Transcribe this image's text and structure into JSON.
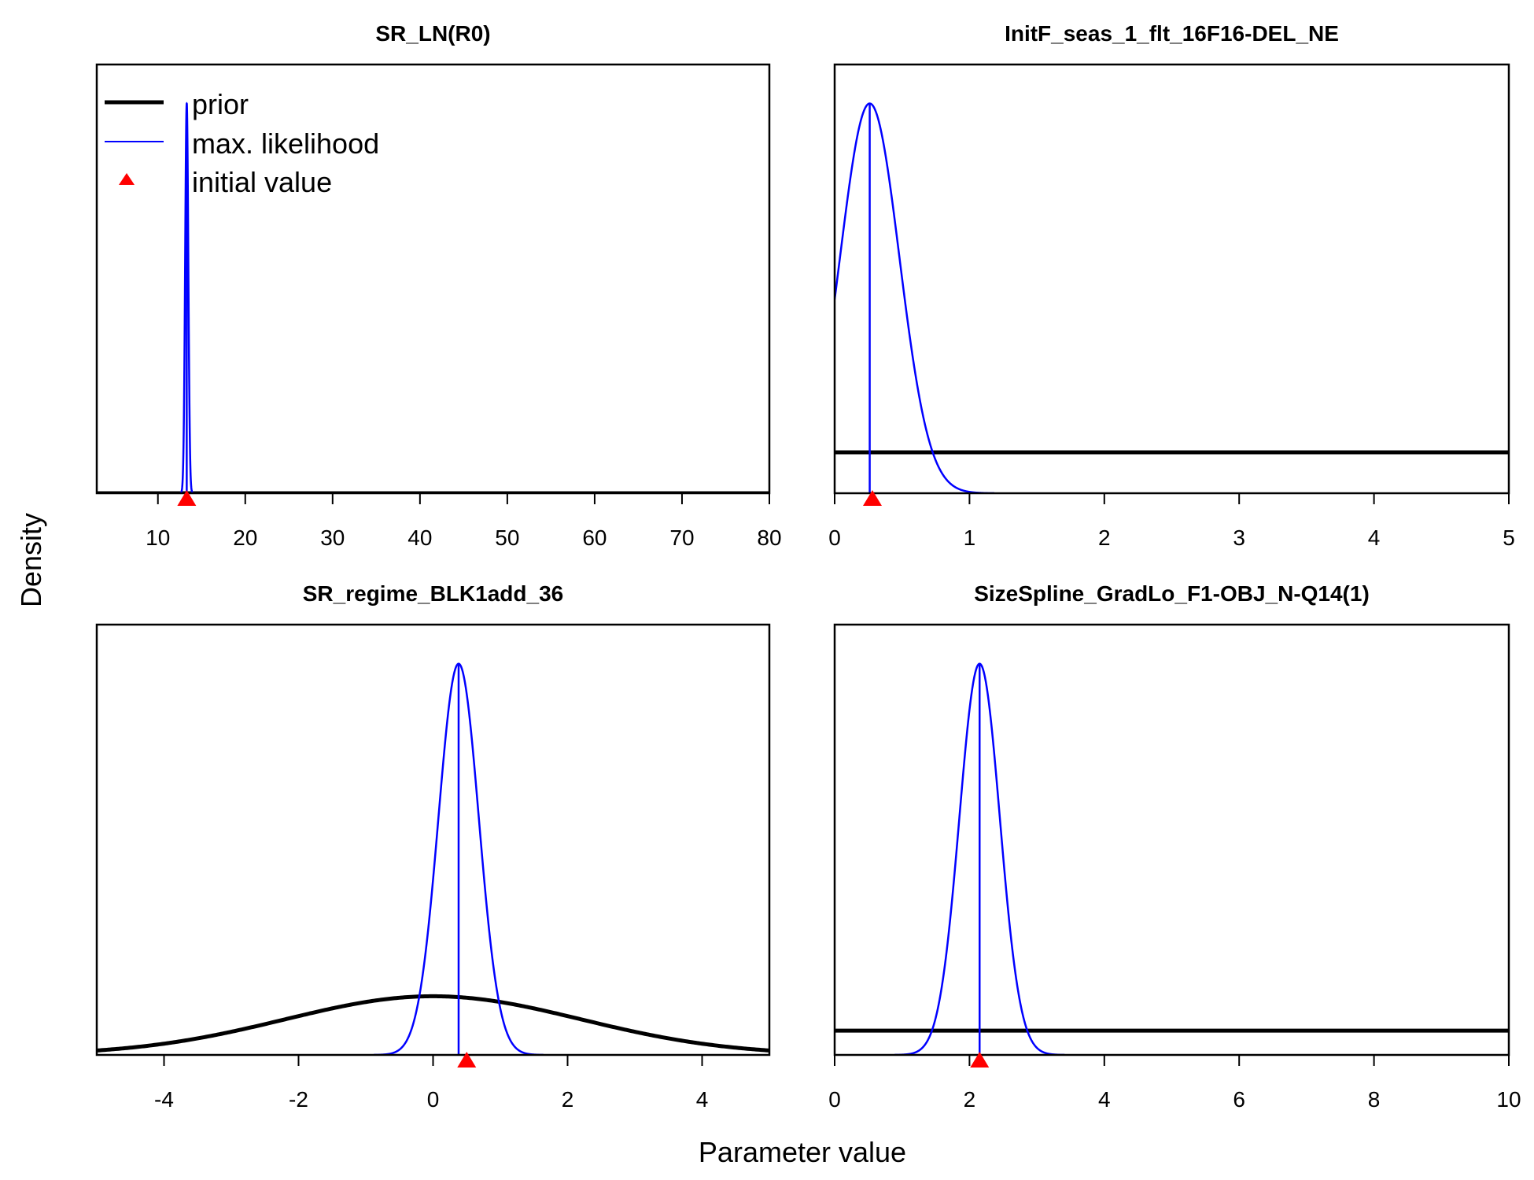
{
  "figure": {
    "xlabel": "Parameter value",
    "ylabel": "Density",
    "legend": {
      "placement": "top-left of first panel",
      "items": [
        {
          "label": "prior",
          "style": "thick black line",
          "color": "#000000"
        },
        {
          "label": "max. likelihood",
          "style": "thin blue line",
          "color": "#0000ff"
        },
        {
          "label": "initial value",
          "style": "red triangle",
          "color": "#ff0000"
        }
      ]
    },
    "colors": {
      "prior": "#000000",
      "mle": "#0000ff",
      "init": "#ff0000"
    }
  },
  "chart_data": [
    {
      "type": "line",
      "title": "SR_LN(R0)",
      "xlim": [
        3,
        80
      ],
      "xticks": [
        10,
        20,
        30,
        40,
        50,
        60,
        70,
        80
      ],
      "ylim": [
        0,
        1.1
      ],
      "prior": {
        "kind": "flat",
        "level": 0.0
      },
      "mle": {
        "mean": 13.3,
        "sd": 0.18,
        "peak": 1.0
      },
      "initial_value": 13.3
    },
    {
      "type": "line",
      "title": "InitF_seas_1_flt_16F16-DEL_NE",
      "xlim": [
        0,
        5
      ],
      "xticks": [
        0,
        1,
        2,
        3,
        4,
        5
      ],
      "ylim": [
        0,
        1.1
      ],
      "prior": {
        "kind": "flat",
        "level": 0.105
      },
      "mle": {
        "mean": 0.26,
        "sd": 0.22,
        "peak": 1.0
      },
      "initial_value": 0.28
    },
    {
      "type": "line",
      "title": "SR_regime_BLK1add_36",
      "xlim": [
        -5,
        5
      ],
      "xticks": [
        -4,
        -2,
        0,
        2,
        4
      ],
      "ylim": [
        0,
        1.1
      ],
      "prior": {
        "kind": "normal",
        "mean": 0,
        "sd": 2.2,
        "peak": 0.15
      },
      "mle": {
        "mean": 0.38,
        "sd": 0.3,
        "peak": 1.0
      },
      "initial_value": 0.5
    },
    {
      "type": "line",
      "title": "SizeSpline_GradLo_F1-OBJ_N-Q14(1)",
      "xlim": [
        0,
        10
      ],
      "xticks": [
        0,
        2,
        4,
        6,
        8,
        10
      ],
      "ylim": [
        0,
        1.1
      ],
      "prior": {
        "kind": "flat",
        "level": 0.062
      },
      "mle": {
        "mean": 2.15,
        "sd": 0.3,
        "peak": 1.0
      },
      "initial_value": 2.15
    }
  ]
}
